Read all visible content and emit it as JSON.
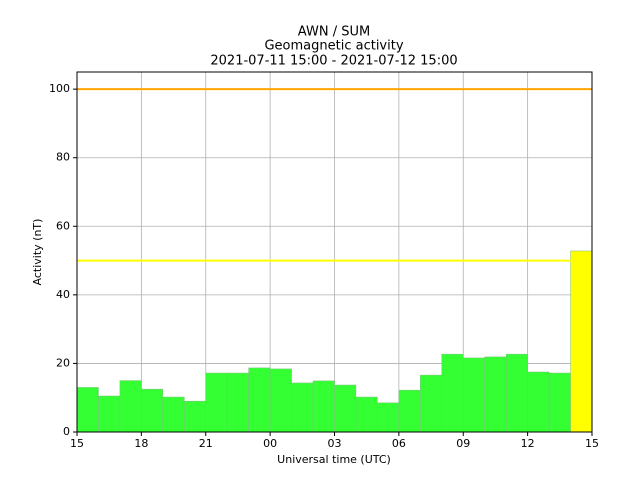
{
  "chart_data": {
    "type": "bar",
    "title": [
      "AWN / SUM",
      "Geomagnetic activity",
      "2021-07-11 15:00 - 2021-07-12 15:00"
    ],
    "x_label": "Universal time (UTC)",
    "y_label": "Activity (nT)",
    "x": [
      0,
      1,
      2,
      3,
      4,
      5,
      6,
      7,
      8,
      9,
      10,
      11,
      12,
      13,
      14,
      15,
      16,
      17,
      18,
      19,
      20,
      21,
      22,
      23
    ],
    "bar_width": 1,
    "values": [
      13,
      10.5,
      15,
      12.5,
      10.2,
      9,
      17.2,
      17.2,
      18.7,
      18.4,
      14.3,
      14.9,
      13.7,
      10.2,
      8.5,
      12.2,
      16.6,
      22.7,
      21.6,
      21.9,
      22.7,
      17.5,
      17.2,
      52.8
    ],
    "colors": [
      "#33ff33",
      "#33ff33",
      "#33ff33",
      "#33ff33",
      "#33ff33",
      "#33ff33",
      "#33ff33",
      "#33ff33",
      "#33ff33",
      "#33ff33",
      "#33ff33",
      "#33ff33",
      "#33ff33",
      "#33ff33",
      "#33ff33",
      "#33ff33",
      "#33ff33",
      "#33ff33",
      "#33ff33",
      "#33ff33",
      "#33ff33",
      "#33ff33",
      "#33ff33",
      "#ffff00"
    ],
    "threshold_lines": [
      {
        "value": 100,
        "color": "#ffa500"
      },
      {
        "value": 50,
        "color": "#ffff00"
      }
    ],
    "xlim": [
      0,
      24
    ],
    "xticks": [
      {
        "value": 0,
        "label": "15"
      },
      {
        "value": 3,
        "label": "18"
      },
      {
        "value": 6,
        "label": "21"
      },
      {
        "value": 9,
        "label": "00"
      },
      {
        "value": 12,
        "label": "03"
      },
      {
        "value": 15,
        "label": "06"
      },
      {
        "value": 18,
        "label": "09"
      },
      {
        "value": 21,
        "label": "12"
      },
      {
        "value": 24,
        "label": "15"
      }
    ],
    "ylim": [
      0,
      105
    ],
    "yticks": [
      0,
      20,
      40,
      60,
      80,
      100
    ],
    "grid": true
  }
}
